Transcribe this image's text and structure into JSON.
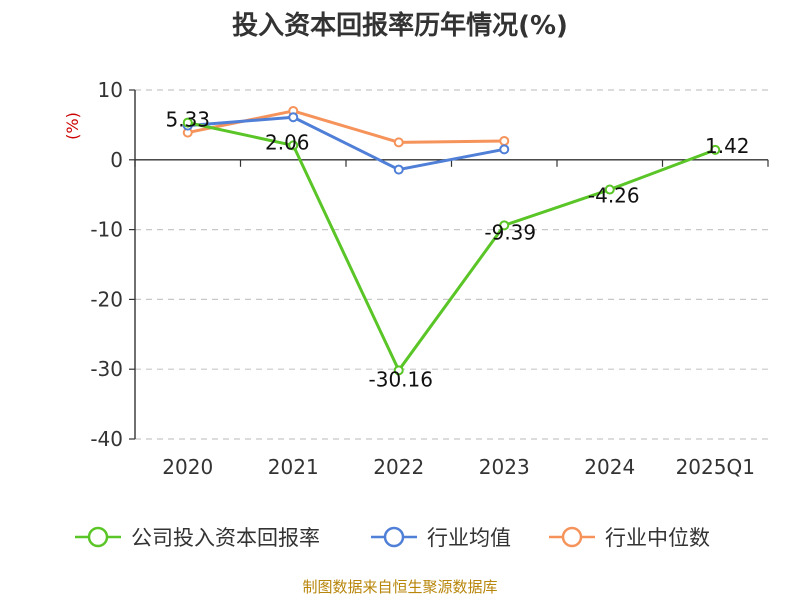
{
  "chart_data": {
    "type": "line",
    "title": "投入资本回报率历年情况(%)",
    "unit": "(%)",
    "categories": [
      "2020",
      "2021",
      "2022",
      "2023",
      "2024",
      "2025Q1"
    ],
    "ylim": [
      -40,
      10
    ],
    "yticks": [
      "10",
      "0",
      "-10",
      "-20",
      "-30",
      "-40"
    ],
    "grid": true,
    "legend_position": "bottom",
    "series": [
      {
        "name": "公司投入资本回报率",
        "color": "#5ac526",
        "values": [
          5.33,
          2.06,
          -30.16,
          -9.39,
          -4.26,
          1.42
        ],
        "labels": [
          "5.33",
          "2.06",
          "-30.16",
          "-9.39",
          "-4.26",
          "1.42"
        ]
      },
      {
        "name": "行业均值",
        "color": "#4f7fd6",
        "values": [
          4.9,
          6.1,
          -1.4,
          1.5,
          null,
          null
        ]
      },
      {
        "name": "行业中位数",
        "color": "#f5935b",
        "values": [
          3.9,
          7.0,
          2.5,
          2.7,
          null,
          null
        ]
      }
    ]
  },
  "source": "制图数据来自恒生聚源数据库"
}
